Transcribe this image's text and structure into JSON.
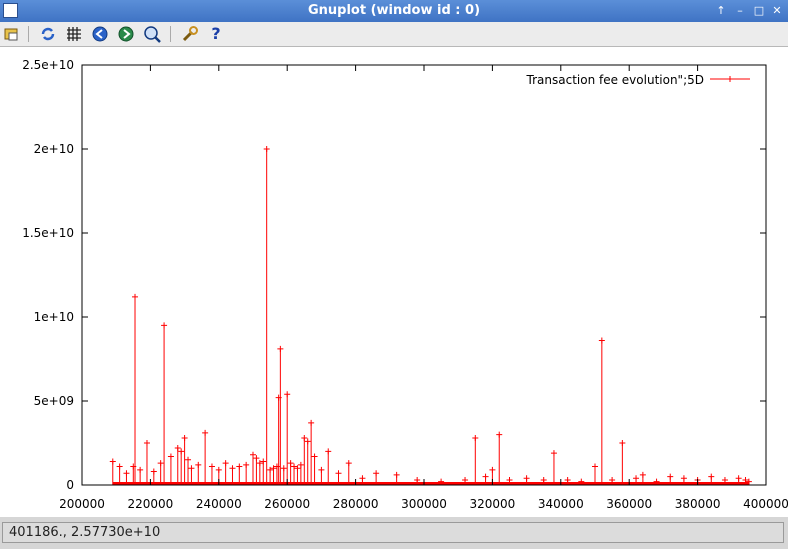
{
  "window": {
    "title": "Gnuplot (window id : 0)"
  },
  "toolbar": {
    "icons": [
      "print-icon",
      "replot-icon",
      "grid-icon",
      "zoom-previous-icon",
      "zoom-next-icon",
      "unzoom-icon",
      "options-icon",
      "help-icon"
    ]
  },
  "status": {
    "coords": "401186.,  2.57730e+10"
  },
  "chart_data": {
    "type": "line",
    "title": "",
    "xlabel": "",
    "ylabel": "",
    "xlim": [
      200000,
      400000
    ],
    "ylim": [
      0,
      25000000000
    ],
    "x_ticks": [
      200000,
      220000,
      240000,
      260000,
      280000,
      300000,
      320000,
      340000,
      360000,
      380000,
      400000
    ],
    "x_tick_labels": [
      "200000",
      "220000",
      "240000",
      "260000",
      "280000",
      "300000",
      "320000",
      "340000",
      "360000",
      "380000",
      "400000"
    ],
    "y_ticks": [
      0,
      5000000000,
      10000000000,
      15000000000,
      20000000000,
      25000000000
    ],
    "y_tick_labels": [
      "0",
      "5e+09",
      "1e+10",
      "1.5e+10",
      "2e+10",
      "2.5e+10"
    ],
    "grid": false,
    "legend_position": "top-right",
    "series": [
      {
        "name": "Transaction fee evolution\";5D",
        "color": "#ff0000",
        "x": [
          209000,
          211000,
          213000,
          215000,
          215500,
          217000,
          219000,
          221000,
          223000,
          224000,
          226000,
          228000,
          229000,
          230000,
          231000,
          232000,
          234000,
          236000,
          238000,
          240000,
          242000,
          244000,
          246000,
          248000,
          250000,
          251000,
          252000,
          253000,
          254000,
          255000,
          256000,
          257000,
          257500,
          258000,
          259000,
          260000,
          261000,
          262000,
          263000,
          264000,
          265000,
          266000,
          267000,
          268000,
          270000,
          272000,
          275000,
          278000,
          282000,
          286000,
          292000,
          298000,
          305000,
          312000,
          315000,
          318000,
          320000,
          322000,
          325000,
          330000,
          335000,
          338000,
          342000,
          346000,
          350000,
          352000,
          355000,
          358000,
          362000,
          364000,
          368000,
          372000,
          376000,
          380000,
          384000,
          388000,
          392000,
          394000,
          395000
        ],
        "y": [
          1400000000,
          1100000000,
          700000000,
          1100000000,
          11200000000,
          900000000,
          2500000000,
          800000000,
          1300000000,
          9500000000,
          1700000000,
          2200000000,
          2000000000,
          2800000000,
          1500000000,
          1000000000,
          1200000000,
          3100000000,
          1100000000,
          900000000,
          1300000000,
          1000000000,
          1100000000,
          1200000000,
          1800000000,
          1600000000,
          1300000000,
          1400000000,
          20000000000,
          900000000,
          1000000000,
          1100000000,
          5200000000,
          8100000000,
          1000000000,
          5400000000,
          1300000000,
          1100000000,
          1000000000,
          1200000000,
          2800000000,
          2600000000,
          3700000000,
          1700000000,
          900000000,
          2000000000,
          700000000,
          1300000000,
          400000000,
          700000000,
          600000000,
          300000000,
          200000000,
          300000000,
          2800000000,
          500000000,
          900000000,
          3000000000,
          300000000,
          400000000,
          300000000,
          1900000000,
          300000000,
          200000000,
          1100000000,
          8600000000,
          300000000,
          2500000000,
          400000000,
          600000000,
          200000000,
          500000000,
          400000000,
          300000000,
          500000000,
          300000000,
          400000000,
          300000000,
          200000000
        ]
      }
    ]
  }
}
